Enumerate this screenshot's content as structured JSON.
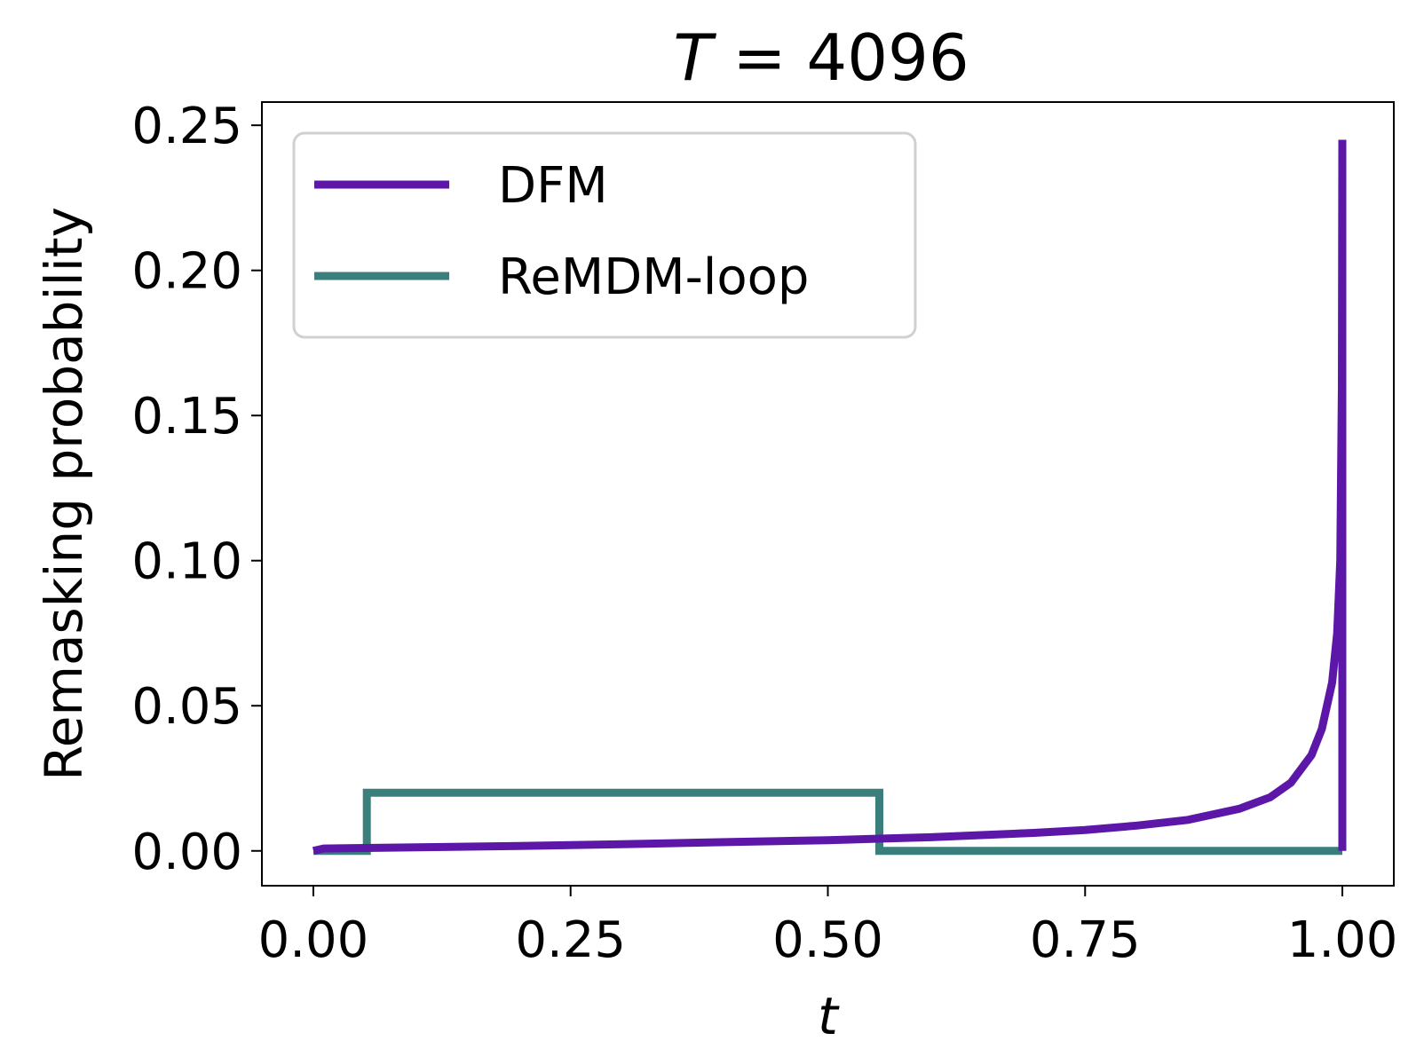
{
  "chart_data": {
    "type": "line",
    "title": "T = 4096",
    "title_var": "T",
    "title_rest": " = 4096",
    "xlabel": "t",
    "ylabel": "Remasking probability",
    "xlim": [
      -0.05,
      1.05
    ],
    "ylim": [
      -0.012,
      0.258
    ],
    "xticks": [
      0.0,
      0.25,
      0.5,
      0.75,
      1.0
    ],
    "xtick_labels": [
      "0.00",
      "0.25",
      "0.50",
      "0.75",
      "1.00"
    ],
    "yticks": [
      0.0,
      0.05,
      0.1,
      0.15,
      0.2,
      0.25
    ],
    "ytick_labels": [
      "0.00",
      "0.05",
      "0.10",
      "0.15",
      "0.20",
      "0.25"
    ],
    "grid": false,
    "legend_position": "upper-left",
    "series": [
      {
        "name": "DFM",
        "color": "#5c17a8",
        "x": [
          0.0,
          0.01,
          0.05,
          0.1,
          0.2,
          0.3,
          0.4,
          0.5,
          0.55,
          0.6,
          0.7,
          0.75,
          0.8,
          0.85,
          0.9,
          0.93,
          0.95,
          0.97,
          0.98,
          0.99,
          0.995,
          0.998,
          0.9995,
          1.0,
          1.0
        ],
        "values": [
          0.0,
          0.0008,
          0.001,
          0.0012,
          0.0017,
          0.0023,
          0.003,
          0.0037,
          0.0042,
          0.0047,
          0.0062,
          0.0072,
          0.0087,
          0.0107,
          0.0145,
          0.0185,
          0.0235,
          0.033,
          0.042,
          0.058,
          0.075,
          0.1,
          0.16,
          0.245,
          0.0
        ]
      },
      {
        "name": "ReMDM-loop",
        "color": "#3a7f7c",
        "x": [
          0.0,
          0.052,
          0.052,
          0.55,
          0.55,
          1.0
        ],
        "values": [
          0.0,
          0.0,
          0.02,
          0.02,
          0.0,
          0.0
        ]
      }
    ]
  }
}
